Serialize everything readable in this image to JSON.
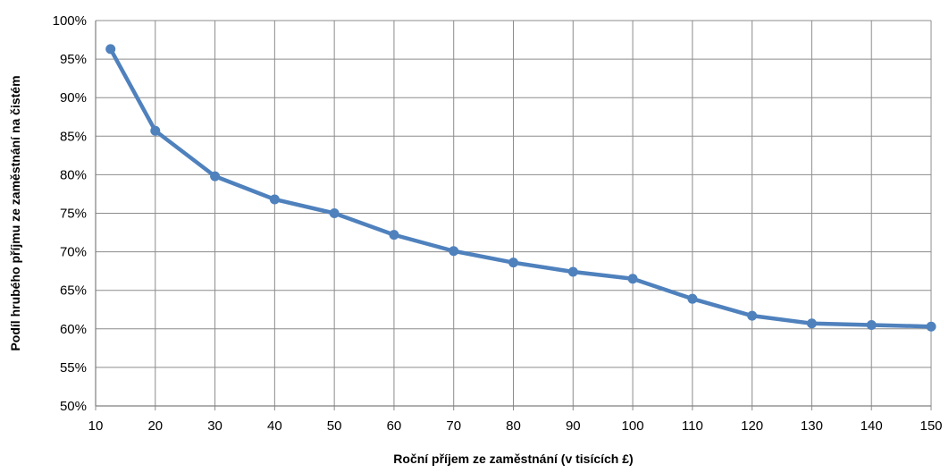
{
  "chart_data": {
    "type": "line",
    "title": "",
    "xlabel": "Roční příjem ze zaměstnání (v tisících £)",
    "ylabel": "Podíl hrubého příjmu ze zaměstnání na čistém",
    "xlim": [
      10,
      150
    ],
    "ylim": [
      50,
      100
    ],
    "x_ticks": [
      10,
      20,
      30,
      40,
      50,
      60,
      70,
      80,
      90,
      100,
      110,
      120,
      130,
      140,
      150
    ],
    "x_tick_labels": [
      "10",
      "20",
      "30",
      "40",
      "50",
      "60",
      "70",
      "80",
      "90",
      "100",
      "110",
      "120",
      "130",
      "140",
      "150"
    ],
    "y_ticks": [
      50,
      55,
      60,
      65,
      70,
      75,
      80,
      85,
      90,
      95,
      100
    ],
    "y_tick_labels": [
      "50%",
      "55%",
      "60%",
      "65%",
      "70%",
      "75%",
      "80%",
      "85%",
      "90%",
      "95%",
      "100%"
    ],
    "grid": true,
    "legend": "none",
    "series": [
      {
        "color": "#4F81BD",
        "x": [
          12.5,
          20,
          30,
          40,
          50,
          60,
          70,
          80,
          90,
          100,
          110,
          120,
          130,
          140,
          150
        ],
        "y": [
          96.3,
          85.7,
          79.8,
          76.8,
          75.0,
          72.2,
          70.1,
          68.6,
          67.4,
          66.5,
          63.9,
          61.7,
          60.7,
          60.5,
          60.3
        ]
      }
    ]
  }
}
